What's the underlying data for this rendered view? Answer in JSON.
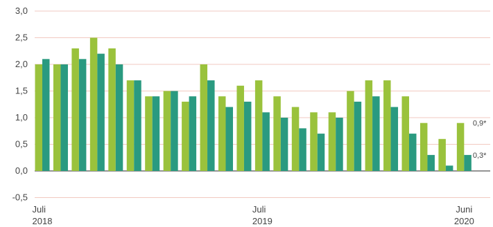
{
  "chart_data": {
    "type": "bar",
    "title": "",
    "xlabel": "",
    "ylabel": "",
    "ylim": [
      -0.5,
      3.0
    ],
    "yticks": [
      "-0,5",
      "0,0",
      "0,5",
      "1,0",
      "1,5",
      "2,0",
      "2,5",
      "3,0"
    ],
    "ytick_values": [
      -0.5,
      0,
      0.5,
      1.0,
      1.5,
      2.0,
      2.5,
      3.0
    ],
    "grid": true,
    "legend": "none",
    "categories": [
      "Jul 2018",
      "Aug 2018",
      "Sep 2018",
      "Okt 2018",
      "Nov 2018",
      "Dez 2018",
      "Jan 2019",
      "Feb 2019",
      "Mär 2019",
      "Apr 2019",
      "Mai 2019",
      "Jun 2019",
      "Jul 2019",
      "Aug 2019",
      "Sep 2019",
      "Okt 2019",
      "Nov 2019",
      "Dez 2019",
      "Jan 2020",
      "Feb 2020",
      "Mär 2020",
      "Apr 2020",
      "Mai 2020",
      "Jun 2020"
    ],
    "x_tick_labels": [
      {
        "index": 0,
        "line1": "Juli",
        "line2": "2018"
      },
      {
        "index": 12,
        "line1": "Juli",
        "line2": "2019"
      },
      {
        "index": 23,
        "line1": "Juni",
        "line2": "2020"
      }
    ],
    "series": [
      {
        "color": "#9ac23c",
        "values": [
          2.0,
          2.0,
          2.3,
          2.5,
          2.3,
          1.7,
          1.4,
          1.5,
          1.3,
          2.0,
          1.4,
          1.6,
          1.7,
          1.4,
          1.2,
          1.1,
          1.1,
          1.5,
          1.7,
          1.7,
          1.4,
          0.9,
          0.6,
          0.9
        ]
      },
      {
        "color": "#2a9a80",
        "values": [
          2.1,
          2.0,
          2.1,
          2.2,
          2.0,
          1.7,
          1.4,
          1.5,
          1.4,
          1.7,
          1.2,
          1.3,
          1.1,
          1.0,
          0.8,
          0.7,
          1.0,
          1.3,
          1.4,
          1.2,
          0.7,
          0.3,
          0.1,
          0.3
        ]
      }
    ],
    "annotations": [
      {
        "series": 0,
        "index": 23,
        "text": "0,9*"
      },
      {
        "series": 1,
        "index": 23,
        "text": "0,3*"
      }
    ],
    "gridline_color": "#f2c9c0",
    "axis_color": "#555555"
  }
}
